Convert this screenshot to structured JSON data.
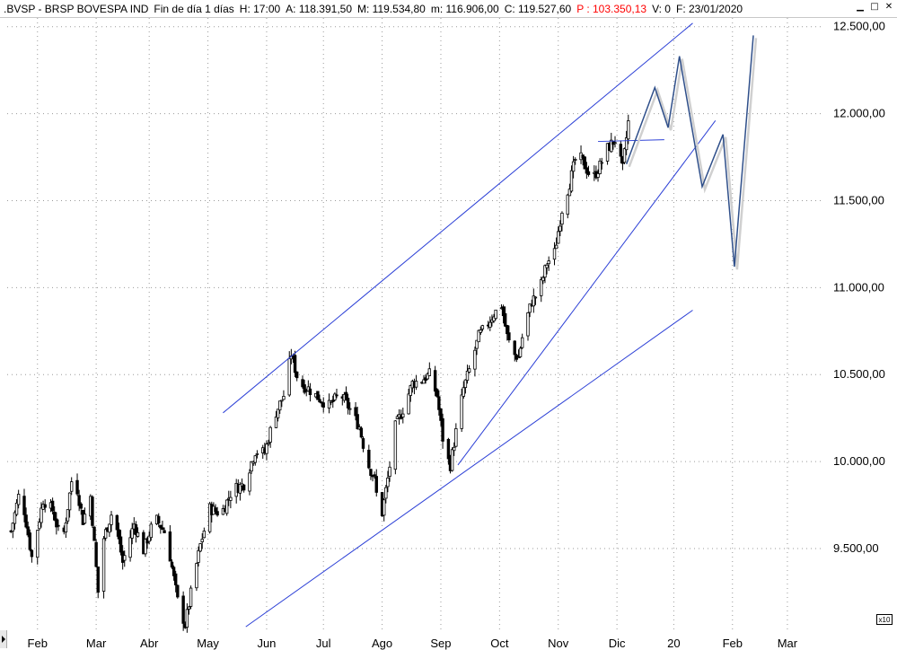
{
  "window": {
    "symbol": ".BVSP - BRSP BOVESPA IND",
    "period": "Fin de día 1 días",
    "hour": "H: 17:00",
    "open": "A: 118.391,50",
    "high": "M: 119.534,80",
    "low": "m: 116.906,00",
    "close": "C: 119.527,60",
    "cursor": "P : 103.350,13",
    "volume": "V: 0",
    "date": "F: 23/01/2020",
    "cursor_color": "#ff0000",
    "controls": [
      "minimize-icon",
      "maximize-icon",
      "close-icon"
    ]
  },
  "scale_badge": "x10",
  "chart_data": {
    "type": "candlestick",
    "y_axis_labels": [
      "12.500,00",
      "12.000,00",
      "11.500,00",
      "11.000,00",
      "10.500,00",
      "10.000,00",
      "9.500,00"
    ],
    "y_axis_values": [
      12500,
      12000,
      11500,
      11000,
      10500,
      10000,
      9500
    ],
    "y_axis_position": "right",
    "ylim": [
      9030,
      12550
    ],
    "x_axis_labels": [
      "Feb",
      "Mar",
      "Abr",
      "May",
      "Jun",
      "Jul",
      "Ago",
      "Sep",
      "Oct",
      "Nov",
      "Dic",
      "20",
      "Feb",
      "Mar"
    ],
    "x_axis_label_days": [
      35,
      66,
      94,
      125,
      156,
      186,
      217,
      248,
      279,
      310,
      341,
      371,
      402,
      431
    ],
    "xlim": [
      19,
      450
    ],
    "grid": true,
    "series_color": "#000000",
    "trendline_color": "#2b3fd6",
    "projection_color": "#2f4f8a",
    "price_path": [
      {
        "day": 21,
        "value": 9600
      },
      {
        "day": 26,
        "value": 9850
      },
      {
        "day": 32,
        "value": 9450
      },
      {
        "day": 38,
        "value": 9780
      },
      {
        "day": 43,
        "value": 9720
      },
      {
        "day": 48,
        "value": 9520
      },
      {
        "day": 54,
        "value": 9960
      },
      {
        "day": 59,
        "value": 9660
      },
      {
        "day": 63,
        "value": 9800
      },
      {
        "day": 67,
        "value": 9250
      },
      {
        "day": 70,
        "value": 9560
      },
      {
        "day": 75,
        "value": 9730
      },
      {
        "day": 80,
        "value": 9420
      },
      {
        "day": 86,
        "value": 9640
      },
      {
        "day": 91,
        "value": 9490
      },
      {
        "day": 97,
        "value": 9680
      },
      {
        "day": 103,
        "value": 9580
      },
      {
        "day": 109,
        "value": 9200
      },
      {
        "day": 113,
        "value": 9060
      },
      {
        "day": 117,
        "value": 9300
      },
      {
        "day": 121,
        "value": 9520
      },
      {
        "day": 126,
        "value": 9730
      },
      {
        "day": 132,
        "value": 9700
      },
      {
        "day": 138,
        "value": 9840
      },
      {
        "day": 144,
        "value": 9870
      },
      {
        "day": 150,
        "value": 10060
      },
      {
        "day": 155,
        "value": 10050
      },
      {
        "day": 160,
        "value": 10260
      },
      {
        "day": 165,
        "value": 10380
      },
      {
        "day": 169,
        "value": 10620
      },
      {
        "day": 173,
        "value": 10450
      },
      {
        "day": 178,
        "value": 10420
      },
      {
        "day": 183,
        "value": 10370
      },
      {
        "day": 189,
        "value": 10320
      },
      {
        "day": 195,
        "value": 10390
      },
      {
        "day": 200,
        "value": 10300
      },
      {
        "day": 205,
        "value": 10200
      },
      {
        "day": 209,
        "value": 10000
      },
      {
        "day": 213,
        "value": 9900
      },
      {
        "day": 216,
        "value": 9640
      },
      {
        "day": 220,
        "value": 9900
      },
      {
        "day": 224,
        "value": 10200
      },
      {
        "day": 228,
        "value": 10300
      },
      {
        "day": 233,
        "value": 10450
      },
      {
        "day": 238,
        "value": 10470
      },
      {
        "day": 242,
        "value": 10500
      },
      {
        "day": 246,
        "value": 10380
      },
      {
        "day": 250,
        "value": 10050
      },
      {
        "day": 253,
        "value": 9980
      },
      {
        "day": 256,
        "value": 10170
      },
      {
        "day": 260,
        "value": 10420
      },
      {
        "day": 264,
        "value": 10560
      },
      {
        "day": 268,
        "value": 10720
      },
      {
        "day": 272,
        "value": 10780
      },
      {
        "day": 276,
        "value": 10850
      },
      {
        "day": 280,
        "value": 10900
      },
      {
        "day": 283,
        "value": 10720
      },
      {
        "day": 286,
        "value": 10620
      },
      {
        "day": 289,
        "value": 10600
      },
      {
        "day": 292,
        "value": 10770
      },
      {
        "day": 296,
        "value": 10920
      },
      {
        "day": 300,
        "value": 10980
      },
      {
        "day": 304,
        "value": 11140
      },
      {
        "day": 308,
        "value": 11200
      },
      {
        "day": 312,
        "value": 11450
      },
      {
        "day": 316,
        "value": 11600
      },
      {
        "day": 320,
        "value": 11780
      },
      {
        "day": 324,
        "value": 11700
      },
      {
        "day": 328,
        "value": 11620
      },
      {
        "day": 332,
        "value": 11700
      },
      {
        "day": 336,
        "value": 11800
      },
      {
        "day": 340,
        "value": 11850
      },
      {
        "day": 344,
        "value": 11680
      },
      {
        "day": 347,
        "value": 11950
      }
    ],
    "trendlines": [
      {
        "name": "upper-channel",
        "points": [
          {
            "day": 133,
            "value": 10280
          },
          {
            "day": 381,
            "value": 12520
          }
        ]
      },
      {
        "name": "lower-channel",
        "points": [
          {
            "day": 145,
            "value": 9050
          },
          {
            "day": 381,
            "value": 10870
          }
        ]
      },
      {
        "name": "steep-support",
        "points": [
          {
            "day": 257,
            "value": 9980
          },
          {
            "day": 393,
            "value": 11960
          }
        ]
      },
      {
        "name": "resistance-flat",
        "points": [
          {
            "day": 331,
            "value": 11840
          },
          {
            "day": 366,
            "value": 11850
          }
        ]
      }
    ],
    "projection": [
      {
        "day": 346,
        "value": 11710
      },
      {
        "day": 361,
        "value": 12150
      },
      {
        "day": 368,
        "value": 11920
      },
      {
        "day": 374,
        "value": 12330
      },
      {
        "day": 386,
        "value": 11580
      },
      {
        "day": 397,
        "value": 11880
      },
      {
        "day": 403,
        "value": 11120
      },
      {
        "day": 413,
        "value": 12450
      }
    ]
  }
}
